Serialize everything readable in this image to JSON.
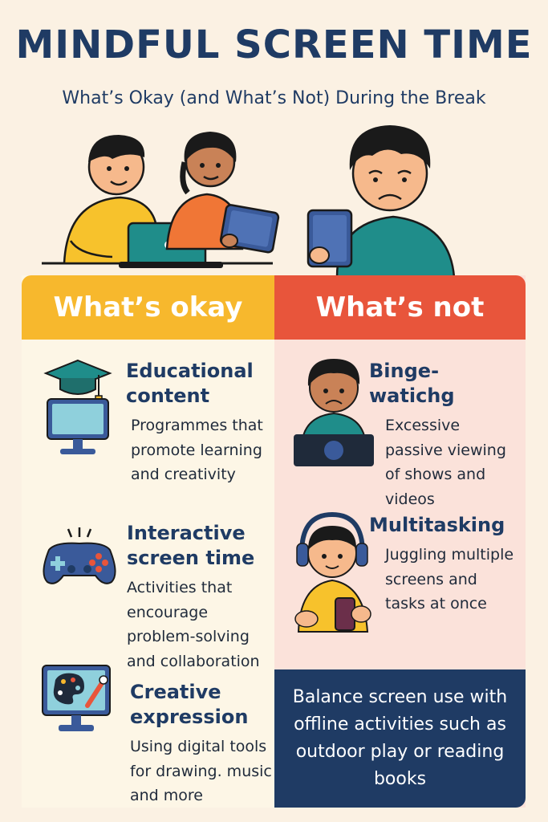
{
  "header": {
    "title": "MINDFUL SCREEN TIME",
    "subtitle": "What’s Okay (and What’s Not) During the Break"
  },
  "okay": {
    "heading": "What’s okay",
    "items": [
      {
        "title": "Educational content",
        "text": "Programmes that promote learning and creativity",
        "icon": "graduation-monitor-icon"
      },
      {
        "title": "Interactive screen time",
        "text": "Activities that encourage problem-solving and collaboration",
        "icon": "gamepad-icon"
      },
      {
        "title": "Creative expression",
        "text": "Using digital tools for drawing. music and more",
        "icon": "paint-monitor-icon"
      }
    ]
  },
  "not": {
    "heading": "What’s not",
    "items": [
      {
        "title": "Binge-watichg",
        "text": "Excessive passive viewing of shows and videos",
        "icon": "sad-kid-laptop-icon"
      },
      {
        "title": "Multitasking",
        "text": "Juggling multiple screens and tasks at once",
        "icon": "kid-headphones-phone-icon"
      }
    ]
  },
  "note": "Balance screen use with offline activities such as outdoor play or reading books",
  "colors": {
    "background": "#fbf1e3",
    "navy": "#1f3b64",
    "okay": "#f7b82d",
    "not": "#e8553b",
    "okay_panel": "#fdf6e6",
    "not_panel": "#fbe2da",
    "teal": "#1f8d8a"
  }
}
